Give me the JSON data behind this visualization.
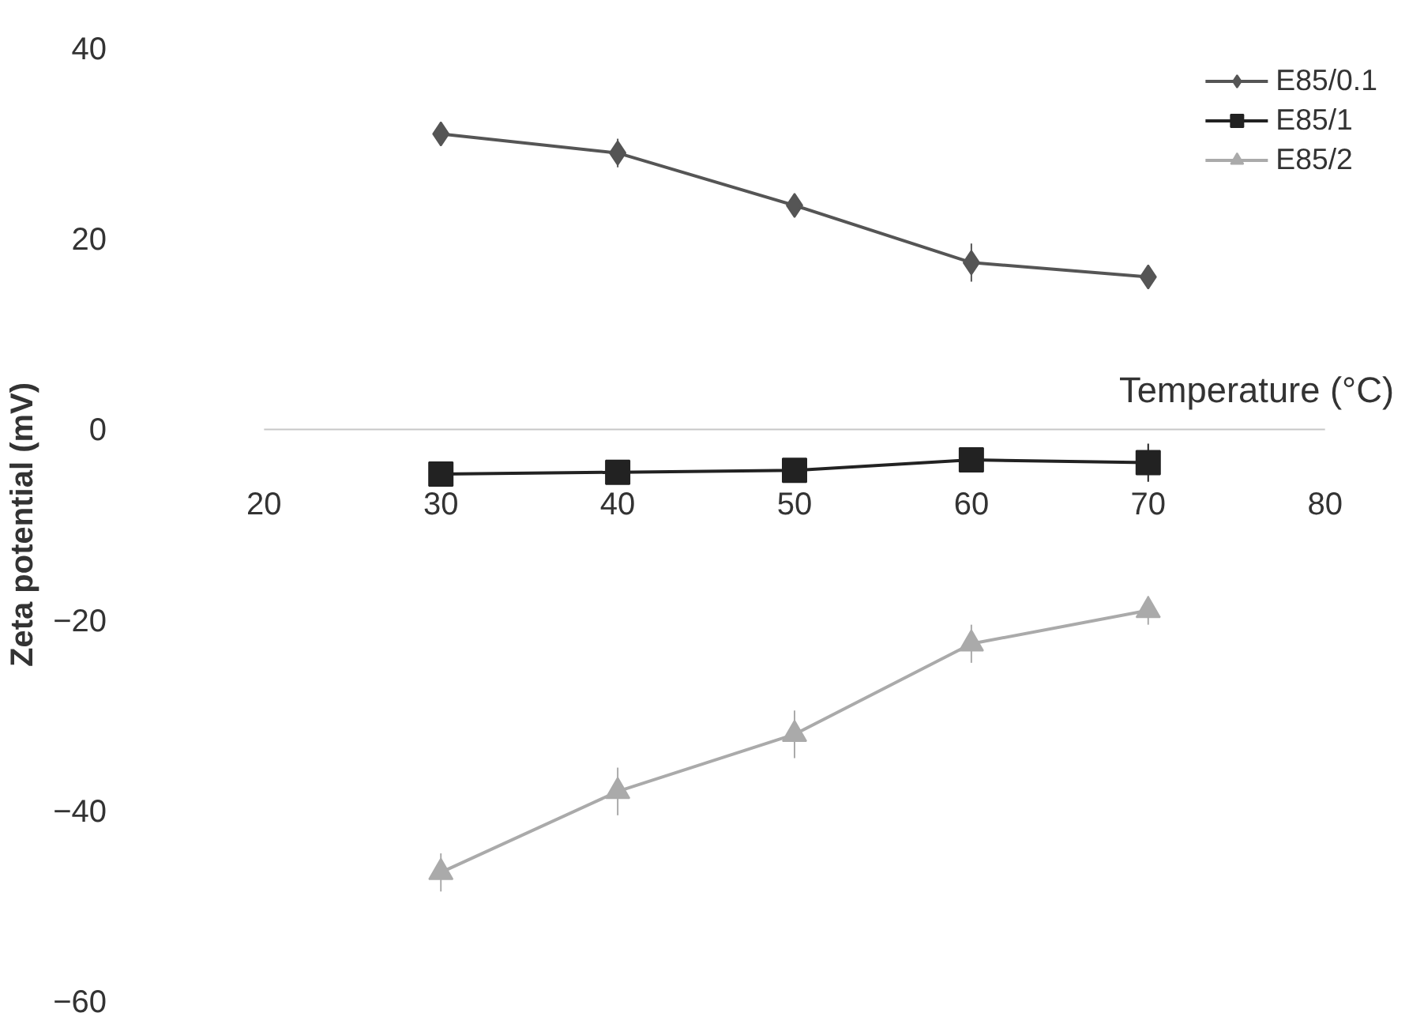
{
  "chart_data": {
    "type": "line",
    "xlabel": "Temperature (°C)",
    "ylabel": "Zeta potential (mV)",
    "x": [
      30,
      40,
      50,
      60,
      70
    ],
    "series": [
      {
        "name": "E85/0.1",
        "color": "#555555",
        "marker": "diamond",
        "values": [
          31,
          29,
          23.5,
          17.5,
          16
        ],
        "errors": [
          0.5,
          1.5,
          1,
          2,
          0.5
        ]
      },
      {
        "name": "E85/1",
        "color": "#222222",
        "marker": "square",
        "values": [
          -4.7,
          -4.5,
          -4.3,
          -3.2,
          -3.5
        ],
        "errors": [
          1,
          0.5,
          0.5,
          1,
          2
        ]
      },
      {
        "name": "E85/2",
        "color": "#aaaaaa",
        "marker": "triangle",
        "values": [
          -46.5,
          -38,
          -32,
          -22.5,
          -19
        ],
        "errors": [
          2,
          2.5,
          2.5,
          2,
          1.5
        ]
      }
    ],
    "xlim": [
      20,
      80
    ],
    "xticks": [
      20,
      30,
      40,
      50,
      60,
      70,
      80
    ],
    "ylim": [
      -60,
      40
    ],
    "yticks": [
      -60,
      -40,
      -20,
      0,
      20,
      40
    ],
    "grid": false,
    "legend": "top right"
  }
}
